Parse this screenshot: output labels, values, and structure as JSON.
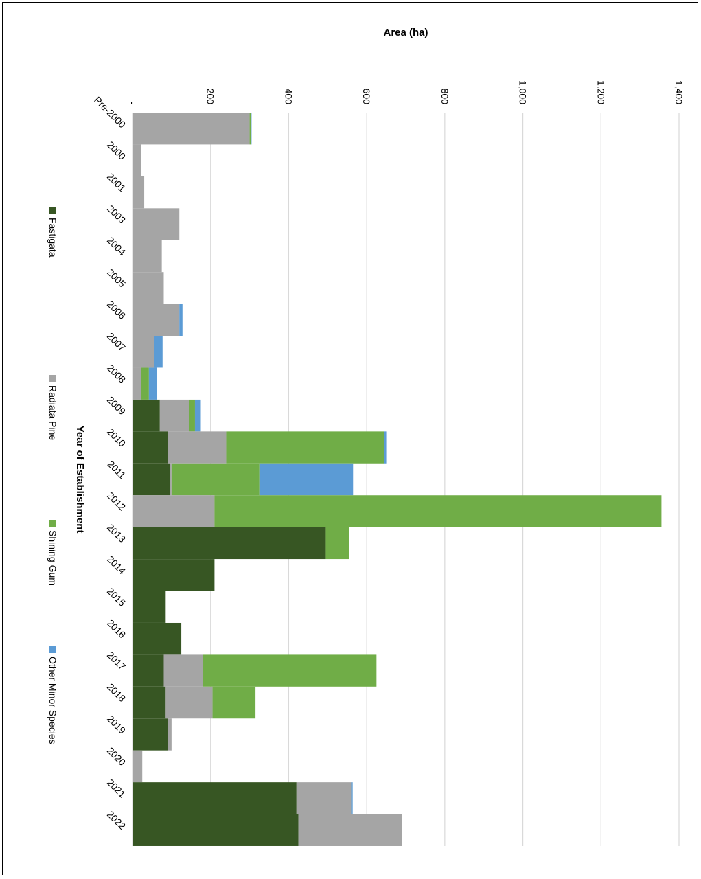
{
  "chart_data": {
    "type": "bar",
    "stacked": true,
    "orientation": "rotated-90-clockwise",
    "title": "",
    "xlabel": "Year of Establishment",
    "ylabel": "Area (ha)",
    "categories": [
      "Pre-2000",
      "2000",
      "2001",
      "2003",
      "2004",
      "2005",
      "2006",
      "2007",
      "2008",
      "2009",
      "2010",
      "2011",
      "2012",
      "2013",
      "2014",
      "2015",
      "2016",
      "2017",
      "2018",
      "2019",
      "2020",
      "2021",
      "2022"
    ],
    "ylim": [
      0,
      1400
    ],
    "yticks": [
      0,
      200,
      400,
      600,
      800,
      1000,
      1200,
      1400
    ],
    "ytick_labels": [
      "-",
      "200",
      "400",
      "600",
      "800",
      "1,000",
      "1,200",
      "1,400"
    ],
    "grid": true,
    "legend_position": "bottom",
    "series": [
      {
        "name": "Fastigata",
        "color": "#375623",
        "values": [
          0,
          0,
          0,
          0,
          0,
          0,
          0,
          0,
          0,
          70,
          90,
          95,
          0,
          495,
          210,
          85,
          125,
          80,
          85,
          90,
          0,
          420,
          425
        ]
      },
      {
        "name": "Radiata Pine",
        "color": "#a5a5a5",
        "values": [
          300,
          22,
          30,
          120,
          75,
          80,
          120,
          55,
          22,
          75,
          150,
          5,
          210,
          0,
          0,
          0,
          0,
          100,
          120,
          10,
          25,
          140,
          265
        ]
      },
      {
        "name": "Shining Gum",
        "color": "#70ad47",
        "values": [
          4,
          0,
          0,
          0,
          0,
          0,
          0,
          0,
          20,
          15,
          405,
          225,
          1145,
          60,
          0,
          0,
          0,
          445,
          110,
          0,
          0,
          0,
          0
        ]
      },
      {
        "name": "Other Minor Species",
        "color": "#5b9bd5",
        "values": [
          1,
          0,
          0,
          0,
          0,
          0,
          8,
          22,
          20,
          15,
          5,
          240,
          0,
          0,
          0,
          0,
          0,
          0,
          0,
          0,
          0,
          4,
          0
        ]
      }
    ]
  }
}
